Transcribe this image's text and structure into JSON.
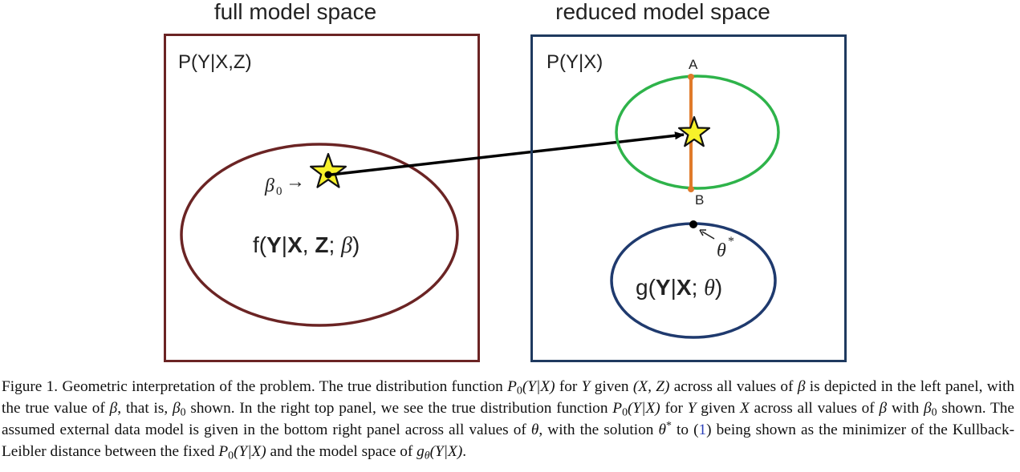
{
  "left_panel": {
    "heading": "full model space",
    "box_label": "P(Y|X,Z)",
    "point_label": "β",
    "point_subscript": "0",
    "point_arrow": "→",
    "ellipse_label": {
      "f": "f(",
      "Y": "Y",
      "bar": "|",
      "X": "X",
      "comma": ", ",
      "Z": "Z",
      "semi": "; ",
      "beta": "β",
      "close": ")"
    }
  },
  "right_panel": {
    "heading": "reduced model space",
    "box_label": "P(Y|X)",
    "point_a": "A",
    "point_b": "B",
    "theta_label": "θ",
    "theta_sup": "*",
    "ellipse_label": {
      "g": "g(",
      "Y": "Y",
      "bar": "|",
      "X": "X",
      "semi": "; ",
      "theta": "θ",
      "close": ")"
    }
  },
  "colors": {
    "left_box": "#6b2424",
    "left_ellipse": "#6b2424",
    "right_box": "#1f3a5f",
    "green_ellipse": "#2eb34a",
    "segment": "#e07a2a",
    "bottom_ellipse": "#1f3a6e",
    "star_fill": "#f7f12a",
    "arrow": "#000000"
  },
  "icons": {
    "left_star": "star-icon",
    "right_star": "star-icon"
  },
  "caption": {
    "s01": "Figure 1.  Geometric interpretation of the problem. The true distribution function ",
    "m_P": "P",
    "m_0a": "0",
    "m_YX1": "(Y|X)",
    "s02": " for ",
    "m_Y1": "Y",
    "s03": " given ",
    "m_XZ": "(X, Z)",
    "s04": " across all values of ",
    "m_b1": "β",
    "s05": " is depicted in the left panel, with the true value of ",
    "m_b2": "β",
    "s06": ", that is, ",
    "m_b3": "β",
    "m_0b": "0",
    "s07": " shown. In the right top panel, we see the true distribution function ",
    "m_P2": "P",
    "m_0c": "0",
    "m_YX2": "(Y|X)",
    "s08": " for ",
    "m_Y2": "Y",
    "s09": " given ",
    "m_X1": "X",
    "s10": " across all values of ",
    "m_b4": "β",
    "s11": " with ",
    "m_b5": "β",
    "m_0d": "0",
    "s12": " shown. The assumed external data model is given in the bottom right panel across all values of ",
    "m_t1": "θ",
    "s13": ", with the solution ",
    "m_t2": "θ",
    "m_star": "*",
    "s14": " to (",
    "ref": "1",
    "s15": ") being shown as the minimizer of the Kullback-Leibler distance between the fixed ",
    "m_P3": "P",
    "m_0e": "0",
    "m_YX3": "(Y|X)",
    "s16": " and the model space of ",
    "m_g": "g",
    "m_th": "θ",
    "m_YX4": "(Y|X)",
    "s17": "."
  }
}
